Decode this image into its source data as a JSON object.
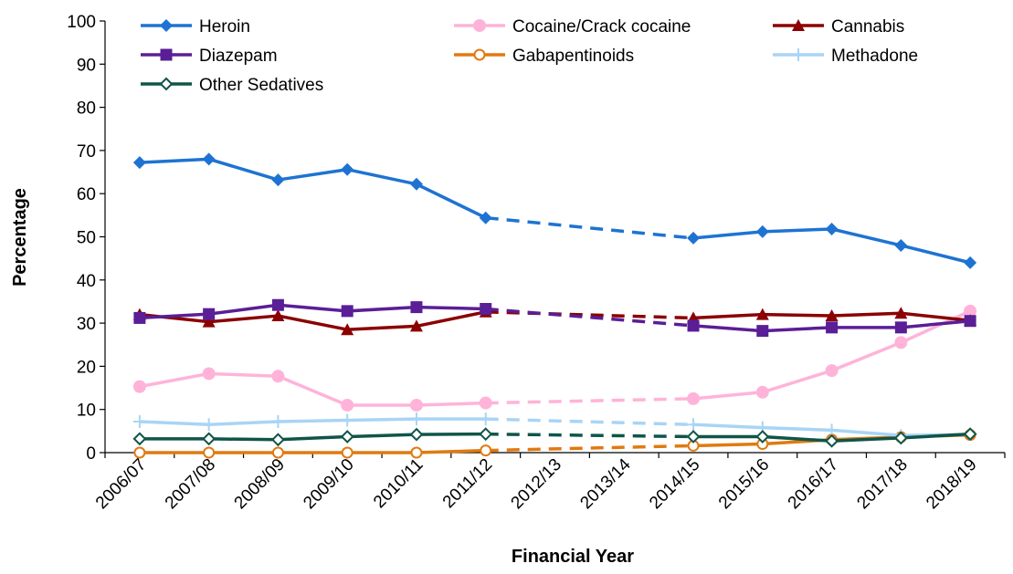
{
  "chart_data": {
    "type": "line",
    "xlabel": "Financial Year",
    "ylabel": "Percentage",
    "ylim": [
      0,
      100
    ],
    "yticks": [
      0,
      10,
      20,
      30,
      40,
      50,
      60,
      70,
      80,
      90,
      100
    ],
    "categories": [
      "2006/07",
      "2007/08",
      "2008/09",
      "2009/10",
      "2010/11",
      "2011/12",
      "2012/13",
      "2013/14",
      "2014/15",
      "2015/16",
      "2016/17",
      "2017/18",
      "2018/19"
    ],
    "interpolated_categories": [
      "2012/13",
      "2013/14"
    ],
    "grid": false,
    "legend_position": "top",
    "series": [
      {
        "name": "Heroin",
        "color": "#1E73D2",
        "marker": "diamond-filled",
        "values": [
          67.2,
          68.0,
          63.2,
          65.6,
          62.2,
          54.4,
          null,
          null,
          49.7,
          51.2,
          51.8,
          48.0,
          44.0
        ]
      },
      {
        "name": "Cocaine/Crack cocaine",
        "color": "#FFB3D9",
        "marker": "circle-filled",
        "values": [
          15.3,
          18.3,
          17.7,
          11.0,
          11.0,
          11.5,
          null,
          null,
          12.5,
          14.0,
          19.0,
          25.5,
          32.8
        ]
      },
      {
        "name": "Cannabis",
        "color": "#8B0000",
        "marker": "triangle-filled",
        "values": [
          32.0,
          30.3,
          31.7,
          28.5,
          29.3,
          32.6,
          null,
          null,
          31.2,
          32.0,
          31.7,
          32.3,
          30.6
        ]
      },
      {
        "name": "Diazepam",
        "color": "#5A1E96",
        "marker": "square-filled",
        "values": [
          31.2,
          32.1,
          34.2,
          32.8,
          33.7,
          33.3,
          null,
          null,
          29.4,
          28.2,
          29.0,
          29.0,
          30.5
        ]
      },
      {
        "name": "Gabapentinoids",
        "color": "#E07A10",
        "marker": "circle-open",
        "values": [
          0.0,
          0.0,
          0.0,
          0.0,
          0.0,
          0.5,
          null,
          null,
          1.6,
          2.0,
          3.0,
          3.6,
          4.1
        ]
      },
      {
        "name": "Methadone",
        "color": "#A9D4F5",
        "marker": "plus",
        "values": [
          7.2,
          6.5,
          7.2,
          7.5,
          7.8,
          7.8,
          null,
          null,
          6.5,
          5.8,
          5.2,
          4.0,
          4.2
        ]
      },
      {
        "name": "Other Sedatives",
        "color": "#0F5548",
        "marker": "diamond-open",
        "values": [
          3.2,
          3.2,
          3.0,
          3.7,
          4.2,
          4.3,
          null,
          null,
          3.7,
          3.7,
          2.7,
          3.4,
          4.3
        ]
      }
    ]
  }
}
